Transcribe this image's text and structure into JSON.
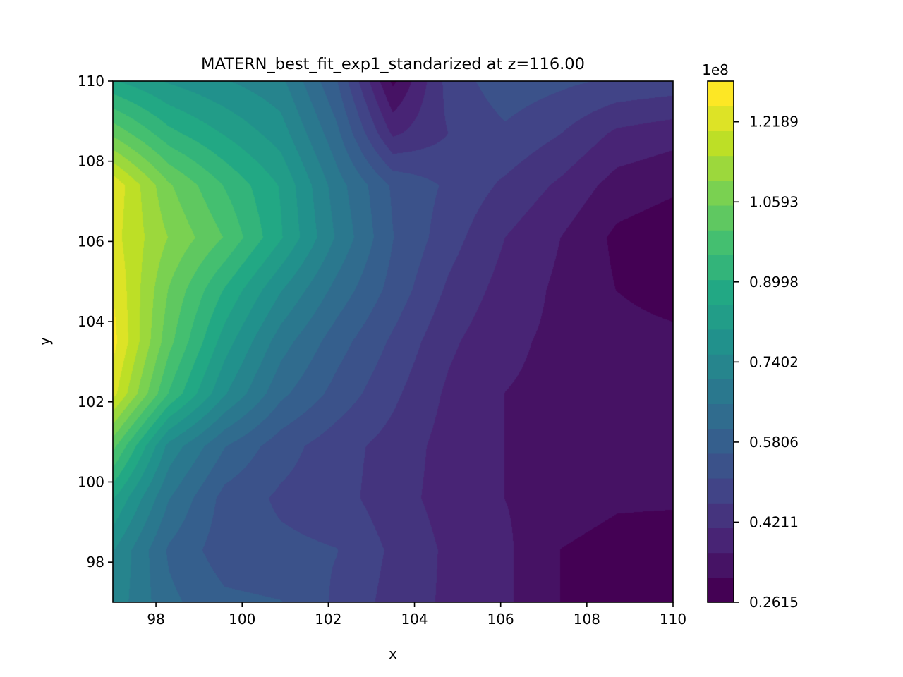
{
  "chart_data": {
    "type": "heatmap",
    "subtype": "filled-contour",
    "title": "MATERN_best_fit_exp1_standarized at z=116.00",
    "xlabel": "x",
    "ylabel": "y",
    "xlim": [
      97,
      110
    ],
    "ylim": [
      97,
      110
    ],
    "x_ticks": [
      "98",
      "100",
      "102",
      "104",
      "106",
      "108",
      "110"
    ],
    "y_ticks": [
      "98",
      "100",
      "102",
      "104",
      "106",
      "108",
      "110"
    ],
    "colormap": "viridis",
    "colorbar": {
      "multiplier_label": "1e8",
      "vmin": 0.2615,
      "vmax": 1.3,
      "tick_labels": [
        "0.2615",
        "0.4211",
        "0.5806",
        "0.7402",
        "0.8998",
        "1.0593",
        "1.2189"
      ],
      "tick_values": [
        0.2615,
        0.4211,
        0.5806,
        0.7402,
        0.8998,
        1.0593,
        1.2189
      ],
      "levels": 21
    },
    "grid": false,
    "field_x": [
      97,
      98.3,
      99.6,
      100.9,
      102.2,
      103.5,
      104.8,
      106.1,
      107.4,
      108.7,
      110
    ],
    "field_y": [
      97,
      98.3,
      99.6,
      100.9,
      102.2,
      103.5,
      104.8,
      106.1,
      107.4,
      108.7,
      110
    ],
    "field_values_1e8": [
      [
        0.74,
        0.62,
        0.57,
        0.56,
        0.5,
        0.44,
        0.4,
        0.37,
        0.31,
        0.29,
        0.28
      ],
      [
        0.76,
        0.6,
        0.53,
        0.52,
        0.51,
        0.45,
        0.4,
        0.37,
        0.31,
        0.29,
        0.28
      ],
      [
        0.86,
        0.66,
        0.54,
        0.5,
        0.48,
        0.43,
        0.39,
        0.36,
        0.34,
        0.32,
        0.32
      ],
      [
        1.02,
        0.74,
        0.61,
        0.53,
        0.48,
        0.44,
        0.39,
        0.36,
        0.34,
        0.34,
        0.35
      ],
      [
        1.22,
        0.95,
        0.76,
        0.62,
        0.54,
        0.47,
        0.4,
        0.36,
        0.35,
        0.35,
        0.35
      ],
      [
        1.27,
        1.02,
        0.83,
        0.68,
        0.58,
        0.5,
        0.42,
        0.37,
        0.35,
        0.34,
        0.33
      ],
      [
        1.25,
        1.05,
        0.9,
        0.76,
        0.64,
        0.54,
        0.45,
        0.39,
        0.35,
        0.31,
        0.28
      ],
      [
        1.22,
        1.1,
        1.0,
        0.86,
        0.7,
        0.56,
        0.48,
        0.41,
        0.36,
        0.3,
        0.28
      ],
      [
        1.24,
        1.06,
        0.95,
        0.85,
        0.68,
        0.55,
        0.5,
        0.45,
        0.4,
        0.34,
        0.32
      ],
      [
        1.04,
        0.92,
        0.85,
        0.78,
        0.62,
        0.4,
        0.46,
        0.5,
        0.46,
        0.4,
        0.38
      ],
      [
        0.86,
        0.8,
        0.76,
        0.72,
        0.56,
        0.3,
        0.48,
        0.54,
        0.52,
        0.5,
        0.49
      ]
    ]
  }
}
